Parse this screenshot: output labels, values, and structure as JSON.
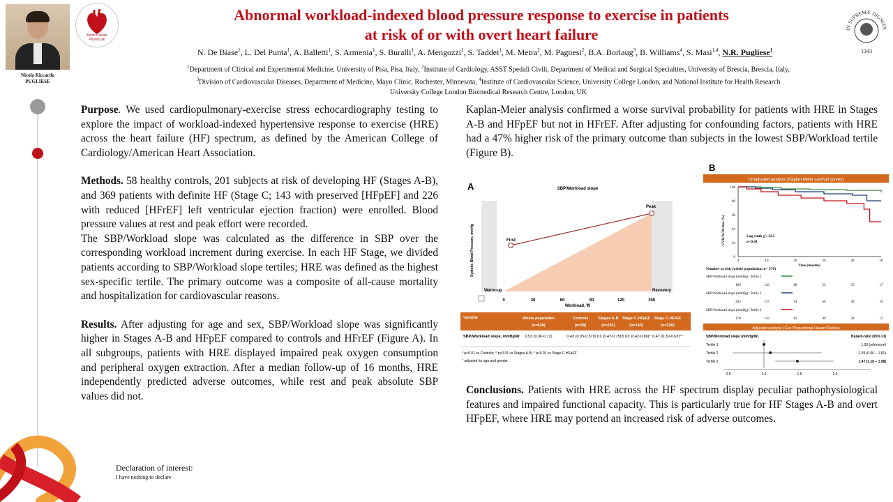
{
  "header": {
    "title_line1": "Abnormal workload-indexed blood pressure response to exercise in patients",
    "title_line2": "at risk of or with overt heart failure",
    "person_name_1": "Nicola Riccardo",
    "person_name_2": "PUGLIESE",
    "logo_text_1": "Heart Failure",
    "logo_text_2": "PhysioLab",
    "seal_text": "IN SUPREMÆ DIGNITATIS",
    "seal_year": "1343"
  },
  "authors": [
    {
      "name": "N. De Biase",
      "sup": "1"
    },
    {
      "name": "L. Del Punta",
      "sup": "1"
    },
    {
      "name": "A. Balletti",
      "sup": "1"
    },
    {
      "name": "S. Armenia",
      "sup": "1"
    },
    {
      "name": "S. Buralli",
      "sup": "1"
    },
    {
      "name": "A. Mengozzi",
      "sup": "1"
    },
    {
      "name": "S. Taddei",
      "sup": "1"
    },
    {
      "name": "M. Metra",
      "sup": "2"
    },
    {
      "name": "M. Pagnesi",
      "sup": "2"
    },
    {
      "name": "B.A. Borlaug",
      "sup": "3"
    },
    {
      "name": "B. Williams",
      "sup": "4"
    },
    {
      "name": "S. Masi",
      "sup": "1,4"
    },
    {
      "name": "N.R. Pugliese",
      "sup": "1"
    }
  ],
  "affiliations": {
    "a1_sup": "1",
    "a1": "Department of Clinical and Experimental Medicine, University of Pisa, Pisa, Italy, ",
    "a2_sup": "2",
    "a2": "Institute of Cardiology, ASST Spedali Civili, Department of Medical and Surgical Specialties, University of Brescia, Brescia, Italy,",
    "a3_sup": "3",
    "a3": "Division of Cardiovascular Diseases, Department of Medicine, Mayo Clinic, Rochester, Minnesota, ",
    "a4_sup": "4",
    "a4": "Institute of Cardiovascular Science, University College London, and National Institute for Health Research",
    "a4b": "University College London Biomedical Research Centre, London, UK"
  },
  "purpose": {
    "label": "Purpose",
    "text": ".  We used cardiopulmonary-exercise stress echocardiography testing to explore the impact of workload-indexed hypertensive response to exercise (HRE) across the heart failure (HF) spectrum, as defined by the American College of Cardiology/American Heart Association."
  },
  "methods": {
    "label": "Methods.",
    "text": " 58 healthy controls, 201 subjects at risk of developing HF (Stages A-B), and 369 patients with definite HF (Stage C; 143 with preserved [HFpEF] and 226 with reduced [HFrEF] left ventricular ejection fraction) were enrolled. Blood pressure values at rest and peak effort were recorded.",
    "text2": "The SBP/Workload slope was calculated as the difference in SBP over the corresponding workload increment during exercise. In each HF Stage, we divided patients according to SBP/Workload slope tertiles; HRE was defined as the highest sex-specific tertile. The primary outcome was a composite of all-cause mortality and hospitalization for cardiovascular reasons."
  },
  "results": {
    "label": "Results.",
    "text": " After adjusting for age and sex, SBP/Workload slope was significantly higher in Stages A-B and HFpEF compared to controls and HFrEF (Figure A). In all subgroups, patients with HRE displayed impaired peak oxygen consumption and peripheral oxygen extraction. After a median follow-up of 16 months, HRE independently predicted adverse outcomes, while rest and peak absolute SBP values did not.",
    "text_right": "Kaplan-Meier analysis confirmed a worse survival probability for patients with HRE in Stages A-B and HFpEF but not in HFrEF. After adjusting for confounding factors, patients with HRE had a 47% higher risk of the primary outcome than subjects in the lowest SBP/Workload tertile (Figure B)."
  },
  "conclusions": {
    "label": "Conclusions.",
    "text": " Patients with HRE across the HF spectrum display peculiar pathophysiological features and impaired functional capacity. This is particularly true for HF Stages A-B and overt HFpEF, where HRE may portend an increased risk of adverse outcomes."
  },
  "declaration": {
    "title": "Declaration of interest:",
    "text": "I have nothing to declare"
  },
  "figA": {
    "panel": "A",
    "title": "SBP/Workload slope",
    "ylabel": "Systolic Blood Pressure, mmHg",
    "xlabel": "Workload, W",
    "ticks": [
      "0",
      "30",
      "60",
      "90",
      "120",
      "150"
    ],
    "first": "First",
    "peak": "Peak",
    "warmup": "Warm-up",
    "recovery": "Recovery",
    "table": {
      "headers": [
        "Variable",
        "Whole population (n=628)",
        "Controls (n=58)",
        "Stages A-B (n=201)",
        "Stage C-HFpEF (n=143)",
        "Stage C-HFrEF (n=226)"
      ],
      "row": [
        "SBP/Workload slope, mmHg/W",
        "0.53 (0.36-0.72)",
        "0.43 (0.35-0.57)",
        "0.61 (0.47-0.75)*",
        "0.63 (0.42-0.86)*",
        "0.47 (0.30-0.63)^°"
      ],
      "note1": "* p<0.01 vs Controls; ^ p<0.01 vs Stages A-B; ° p<0.01 vs Stage C-HFpEF",
      "note2": "° adjusted for age and gender."
    }
  },
  "figB": {
    "panel": "B",
    "km_title": "Unadjusted analysis (Kaplan-Meier survival curves)",
    "ylabel": "CVH/ACM-free (%)",
    "xlabel": "Time (months)",
    "yticks": [
      "100",
      "80",
      "60",
      "40",
      "20",
      "0"
    ],
    "xticks": [
      "0",
      "10",
      "20",
      "30",
      "40",
      "50"
    ],
    "logrank": "Log-rank χ²: 32.5",
    "pval": "p<0.01",
    "risk_title": "Number at risk (whole population, n= 570)",
    "t1_label": "SBP/Workload slope (mmHg): Tertile 1",
    "t1": [
      "189",
      "145",
      "88",
      "52",
      "35",
      "17"
    ],
    "t2_label": "SBP/Workload slope (mmHg): Tertile 2",
    "t2": [
      "203",
      "157",
      "94",
      "60",
      "40",
      "19"
    ],
    "t3_label": "SBP/Workload slope (mmHg): Tertile 3",
    "t3": [
      "178",
      "143",
      "82",
      "49",
      "28",
      "12"
    ],
    "cox_title": "Adjusted analysis (Cox Proportional Hazard Ratios)",
    "cox_col1": "SBP/Workload slope (mmHg/W)",
    "cox_col2": "Hazard-ratio (95% CI)",
    "cox_rows": [
      {
        "label": "Tertile 1",
        "hr": "1.00 (reference)"
      },
      {
        "label": "Tertile 2",
        "hr": "1.09 (0.56 – 1.81)"
      },
      {
        "label": "Tertile 3",
        "hr": "1.47 (1.16 – 1.98)"
      }
    ],
    "cox_ticks": [
      "0.5",
      "1.0",
      "1.5",
      "2.0"
    ]
  },
  "colors": {
    "title": "#c0101a",
    "table_header": "#d2691e",
    "t1": "#3c8c3c",
    "t2": "#1f3d7a",
    "t3": "#c0101a",
    "peach": "#f6cdb3"
  }
}
